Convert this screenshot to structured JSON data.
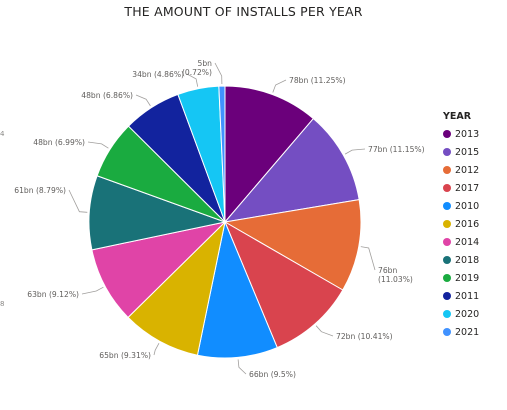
{
  "chart_data": {
    "type": "pie",
    "title": "THE AMOUNT OF INSTALLS PER YEAR",
    "legend_title": "YEAR",
    "legend_position": "right",
    "unit": "bn",
    "slices": [
      {
        "name": "2013",
        "value": 78,
        "percent": "11.25%",
        "label": "78bn (11.25%)",
        "color": "#6b007b"
      },
      {
        "name": "2015",
        "value": 77,
        "percent": "11.15%",
        "label": "77bn (11.15%)",
        "color": "#744ec2"
      },
      {
        "name": "2012",
        "value": 76,
        "percent": "11.03%",
        "label": "76bn (11.03%)",
        "color": "#e66c37"
      },
      {
        "name": "2017",
        "value": 72,
        "percent": "10.41%",
        "label": "72bn (10.41%)",
        "color": "#d9444e"
      },
      {
        "name": "2010",
        "value": 66,
        "percent": "9.5%",
        "label": "66bn (9.5%)",
        "color": "#118dff"
      },
      {
        "name": "2016",
        "value": 65,
        "percent": "9.31%",
        "label": "65bn (9.31%)",
        "color": "#d9b300"
      },
      {
        "name": "2014",
        "value": 63,
        "percent": "9.12%",
        "label": "63bn (9.12%)",
        "color": "#e044a7"
      },
      {
        "name": "2018",
        "value": 61,
        "percent": "8.79%",
        "label": "61bn (8.79%)",
        "color": "#197278"
      },
      {
        "name": "2019",
        "value": 48,
        "percent": "6.99%",
        "label": "48bn (6.99%)",
        "color": "#1aab40"
      },
      {
        "name": "2011",
        "value": 48,
        "percent": "6.86%",
        "label": "48bn (6.86%)",
        "color": "#12239e"
      },
      {
        "name": "2020",
        "value": 34,
        "percent": "4.86%",
        "label": "34bn (4.86%)",
        "color": "#15c6f4"
      },
      {
        "name": "2021",
        "value": 5,
        "percent": "0.72%",
        "label": "5bn (0.72%)",
        "color": "#4092ff"
      }
    ]
  },
  "edge_marks": [
    "4",
    "8"
  ]
}
